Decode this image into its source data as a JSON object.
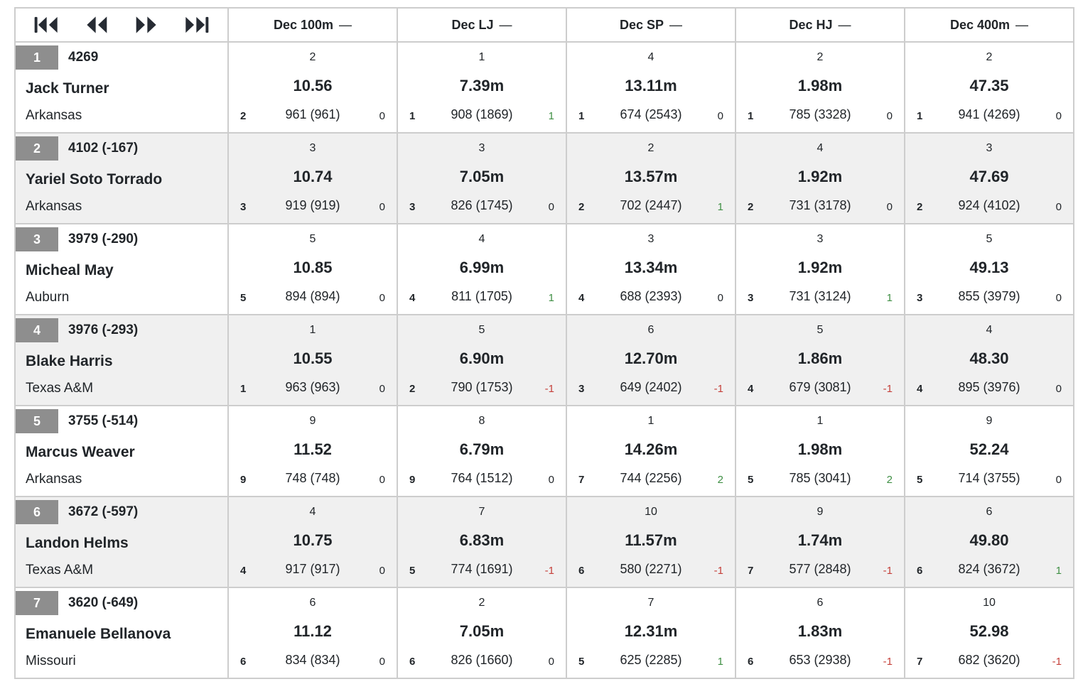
{
  "colors": {
    "text": "#212529",
    "rank_badge_bg": "#8e8e8e",
    "row_stripe": "#f0f0f0",
    "border": "#cdcdcd",
    "delta_positive": "#3f8f44",
    "delta_negative": "#c5403a"
  },
  "pagination": {
    "buttons": [
      {
        "id": "first",
        "icon": "skip-first-icon"
      },
      {
        "id": "previous",
        "icon": "rewind-icon"
      },
      {
        "id": "next",
        "icon": "fast-forward-icon"
      },
      {
        "id": "last",
        "icon": "skip-last-icon"
      }
    ]
  },
  "columns": [
    {
      "label": "Dec 100m",
      "suffix": "—"
    },
    {
      "label": "Dec LJ",
      "suffix": "—"
    },
    {
      "label": "Dec SP",
      "suffix": "—"
    },
    {
      "label": "Dec HJ",
      "suffix": "—"
    },
    {
      "label": "Dec 400m",
      "suffix": "—"
    }
  ],
  "athletes": [
    {
      "rank": "1",
      "score": "4269",
      "name": "Jack Turner",
      "team": "Arkansas",
      "events": [
        {
          "place": "2",
          "mark": "10.56",
          "order": "2",
          "points": "961 (961)",
          "delta": "0",
          "trend": "zero"
        },
        {
          "place": "1",
          "mark": "7.39m",
          "order": "1",
          "points": "908 (1869)",
          "delta": "1",
          "trend": "pos"
        },
        {
          "place": "4",
          "mark": "13.11m",
          "order": "1",
          "points": "674 (2543)",
          "delta": "0",
          "trend": "zero"
        },
        {
          "place": "2",
          "mark": "1.98m",
          "order": "1",
          "points": "785 (3328)",
          "delta": "0",
          "trend": "zero"
        },
        {
          "place": "2",
          "mark": "47.35",
          "order": "1",
          "points": "941 (4269)",
          "delta": "0",
          "trend": "zero"
        }
      ]
    },
    {
      "rank": "2",
      "score": "4102 (-167)",
      "name": "Yariel Soto Torrado",
      "team": "Arkansas",
      "events": [
        {
          "place": "3",
          "mark": "10.74",
          "order": "3",
          "points": "919 (919)",
          "delta": "0",
          "trend": "zero"
        },
        {
          "place": "3",
          "mark": "7.05m",
          "order": "3",
          "points": "826 (1745)",
          "delta": "0",
          "trend": "zero"
        },
        {
          "place": "2",
          "mark": "13.57m",
          "order": "2",
          "points": "702 (2447)",
          "delta": "1",
          "trend": "pos"
        },
        {
          "place": "4",
          "mark": "1.92m",
          "order": "2",
          "points": "731 (3178)",
          "delta": "0",
          "trend": "zero"
        },
        {
          "place": "3",
          "mark": "47.69",
          "order": "2",
          "points": "924 (4102)",
          "delta": "0",
          "trend": "zero"
        }
      ]
    },
    {
      "rank": "3",
      "score": "3979 (-290)",
      "name": "Micheal May",
      "team": "Auburn",
      "events": [
        {
          "place": "5",
          "mark": "10.85",
          "order": "5",
          "points": "894 (894)",
          "delta": "0",
          "trend": "zero"
        },
        {
          "place": "4",
          "mark": "6.99m",
          "order": "4",
          "points": "811 (1705)",
          "delta": "1",
          "trend": "pos"
        },
        {
          "place": "3",
          "mark": "13.34m",
          "order": "4",
          "points": "688 (2393)",
          "delta": "0",
          "trend": "zero"
        },
        {
          "place": "3",
          "mark": "1.92m",
          "order": "3",
          "points": "731 (3124)",
          "delta": "1",
          "trend": "pos"
        },
        {
          "place": "5",
          "mark": "49.13",
          "order": "3",
          "points": "855 (3979)",
          "delta": "0",
          "trend": "zero"
        }
      ]
    },
    {
      "rank": "4",
      "score": "3976 (-293)",
      "name": "Blake Harris",
      "team": "Texas A&M",
      "events": [
        {
          "place": "1",
          "mark": "10.55",
          "order": "1",
          "points": "963 (963)",
          "delta": "0",
          "trend": "zero"
        },
        {
          "place": "5",
          "mark": "6.90m",
          "order": "2",
          "points": "790 (1753)",
          "delta": "-1",
          "trend": "neg"
        },
        {
          "place": "6",
          "mark": "12.70m",
          "order": "3",
          "points": "649 (2402)",
          "delta": "-1",
          "trend": "neg"
        },
        {
          "place": "5",
          "mark": "1.86m",
          "order": "4",
          "points": "679 (3081)",
          "delta": "-1",
          "trend": "neg"
        },
        {
          "place": "4",
          "mark": "48.30",
          "order": "4",
          "points": "895 (3976)",
          "delta": "0",
          "trend": "zero"
        }
      ]
    },
    {
      "rank": "5",
      "score": "3755 (-514)",
      "name": "Marcus Weaver",
      "team": "Arkansas",
      "events": [
        {
          "place": "9",
          "mark": "11.52",
          "order": "9",
          "points": "748 (748)",
          "delta": "0",
          "trend": "zero"
        },
        {
          "place": "8",
          "mark": "6.79m",
          "order": "9",
          "points": "764 (1512)",
          "delta": "0",
          "trend": "zero"
        },
        {
          "place": "1",
          "mark": "14.26m",
          "order": "7",
          "points": "744 (2256)",
          "delta": "2",
          "trend": "pos"
        },
        {
          "place": "1",
          "mark": "1.98m",
          "order": "5",
          "points": "785 (3041)",
          "delta": "2",
          "trend": "pos"
        },
        {
          "place": "9",
          "mark": "52.24",
          "order": "5",
          "points": "714 (3755)",
          "delta": "0",
          "trend": "zero"
        }
      ]
    },
    {
      "rank": "6",
      "score": "3672 (-597)",
      "name": "Landon Helms",
      "team": "Texas A&M",
      "events": [
        {
          "place": "4",
          "mark": "10.75",
          "order": "4",
          "points": "917 (917)",
          "delta": "0",
          "trend": "zero"
        },
        {
          "place": "7",
          "mark": "6.83m",
          "order": "5",
          "points": "774 (1691)",
          "delta": "-1",
          "trend": "neg"
        },
        {
          "place": "10",
          "mark": "11.57m",
          "order": "6",
          "points": "580 (2271)",
          "delta": "-1",
          "trend": "neg"
        },
        {
          "place": "9",
          "mark": "1.74m",
          "order": "7",
          "points": "577 (2848)",
          "delta": "-1",
          "trend": "neg"
        },
        {
          "place": "6",
          "mark": "49.80",
          "order": "6",
          "points": "824 (3672)",
          "delta": "1",
          "trend": "pos"
        }
      ]
    },
    {
      "rank": "7",
      "score": "3620 (-649)",
      "name": "Emanuele Bellanova",
      "team": "Missouri",
      "events": [
        {
          "place": "6",
          "mark": "11.12",
          "order": "6",
          "points": "834 (834)",
          "delta": "0",
          "trend": "zero"
        },
        {
          "place": "2",
          "mark": "7.05m",
          "order": "6",
          "points": "826 (1660)",
          "delta": "0",
          "trend": "zero"
        },
        {
          "place": "7",
          "mark": "12.31m",
          "order": "5",
          "points": "625 (2285)",
          "delta": "1",
          "trend": "pos"
        },
        {
          "place": "6",
          "mark": "1.83m",
          "order": "6",
          "points": "653 (2938)",
          "delta": "-1",
          "trend": "neg"
        },
        {
          "place": "10",
          "mark": "52.98",
          "order": "7",
          "points": "682 (3620)",
          "delta": "-1",
          "trend": "neg"
        }
      ]
    }
  ]
}
